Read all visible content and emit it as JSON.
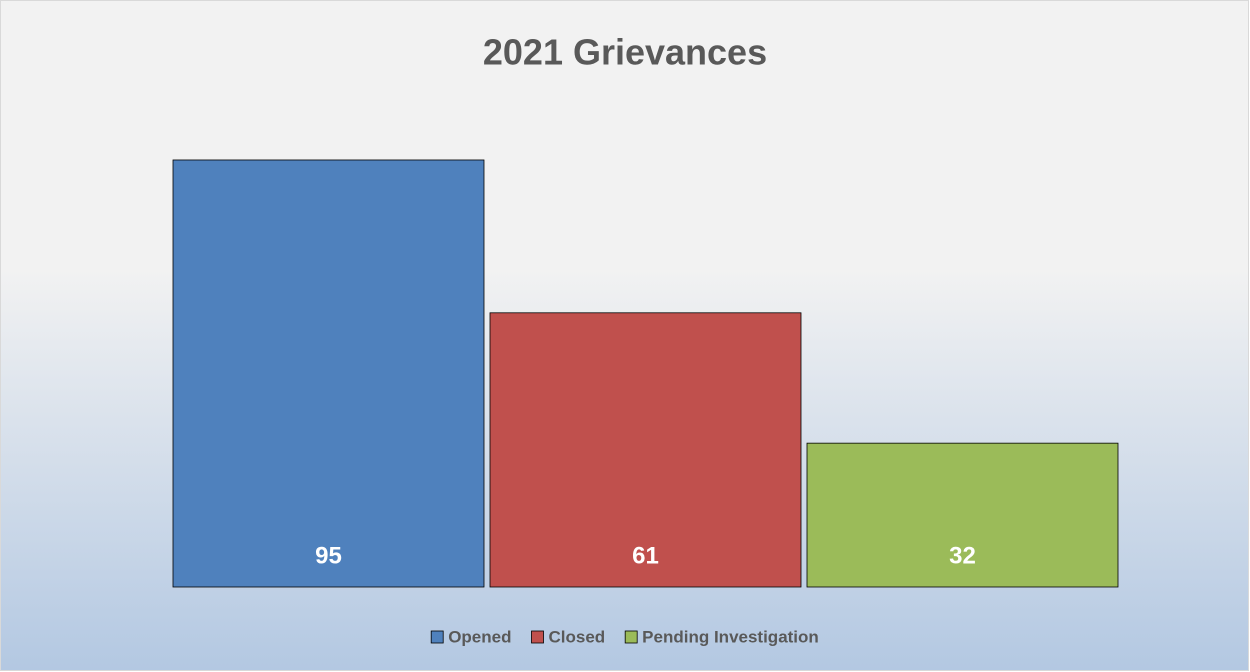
{
  "chart_data": {
    "type": "bar",
    "title": "2021 Grievances",
    "series": [
      {
        "name": "Opened",
        "color": "#4f81bd",
        "values": [
          95
        ]
      },
      {
        "name": "Closed",
        "color": "#c0504d",
        "values": [
          61
        ]
      },
      {
        "name": "Pending Investigation",
        "color": "#9bbb59",
        "values": [
          32
        ]
      }
    ],
    "ylim": [
      0,
      100
    ],
    "legend": "bottom",
    "data_labels": true
  }
}
